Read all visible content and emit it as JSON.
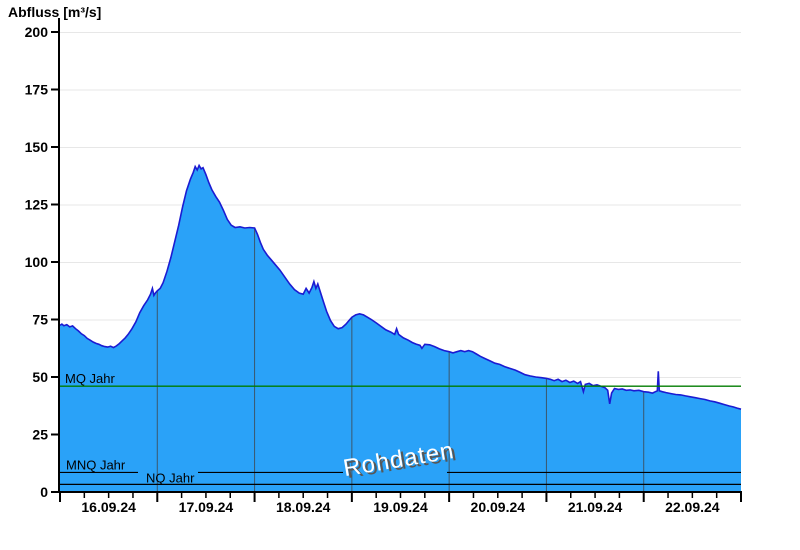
{
  "title": "Abfluss [m³/s]",
  "watermark": "Rohdaten",
  "colors": {
    "area_fill": "#2AA2F8",
    "area_stroke": "#1B1BD2",
    "h_grid": "#E7E7E7",
    "v_grid": "#3E4A54",
    "mq_line": "#007C00",
    "ref_line": "#000000",
    "axis": "#000000",
    "text": "#000000",
    "watermark_fill": "#FFFFFF",
    "watermark_shadow": "#575757"
  },
  "y_axis": {
    "min": 0,
    "max": 200,
    "step": 25,
    "tick_labels": [
      "0",
      "25",
      "50",
      "75",
      "100",
      "125",
      "150",
      "175",
      "200"
    ]
  },
  "x_axis": {
    "labels": [
      "16.09.24",
      "17.09.24",
      "18.09.24",
      "19.09.24",
      "20.09.24",
      "21.09.24",
      "22.09.24"
    ],
    "days": 7,
    "minor_ticks_per_day": 4,
    "range_note": "16.09.24 00:00 bis 23.09.24 00:00"
  },
  "chart_data": {
    "type": "area",
    "title": "Abfluss [m³/s]",
    "ylabel": "Abfluss [m³/s]",
    "xlabel": "",
    "ylim": [
      0,
      200
    ],
    "grid": true,
    "legend": false,
    "x_axis_labels": [
      "16.09.24",
      "17.09.24",
      "18.09.24",
      "19.09.24",
      "20.09.24",
      "21.09.24",
      "22.09.24"
    ],
    "x_unit": "Tage seit 16.09.24 00:00",
    "watermark": "Rohdaten",
    "reference_lines": [
      {
        "label": "MQ Jahr",
        "value": 46,
        "color": "#007C00"
      },
      {
        "label": "MNQ Jahr",
        "value": 8.5,
        "color": "#000000"
      },
      {
        "label": "NQ Jahr",
        "value": 3.3,
        "color": "#000000"
      }
    ],
    "series": [
      {
        "name": "Rohdaten",
        "unit": "m³/s",
        "points": [
          [
            0.0,
            72.5
          ],
          [
            0.02,
            73
          ],
          [
            0.04,
            72.3
          ],
          [
            0.07,
            72.8
          ],
          [
            0.1,
            71.8
          ],
          [
            0.13,
            72.2
          ],
          [
            0.16,
            71
          ],
          [
            0.19,
            70
          ],
          [
            0.22,
            68.8
          ],
          [
            0.25,
            68
          ],
          [
            0.28,
            66.8
          ],
          [
            0.31,
            66
          ],
          [
            0.34,
            65.2
          ],
          [
            0.37,
            64.6
          ],
          [
            0.4,
            64.2
          ],
          [
            0.43,
            63.6
          ],
          [
            0.46,
            63.2
          ],
          [
            0.49,
            63
          ],
          [
            0.52,
            63.4
          ],
          [
            0.55,
            62.8
          ],
          [
            0.58,
            63.5
          ],
          [
            0.61,
            64.5
          ],
          [
            0.64,
            65.8
          ],
          [
            0.67,
            67
          ],
          [
            0.7,
            68.5
          ],
          [
            0.74,
            71
          ],
          [
            0.78,
            74
          ],
          [
            0.82,
            78
          ],
          [
            0.86,
            81
          ],
          [
            0.9,
            83.5
          ],
          [
            0.93,
            86
          ],
          [
            0.95,
            88.5
          ],
          [
            0.965,
            85.5
          ],
          [
            0.98,
            86.5
          ],
          [
            1.0,
            87.5
          ],
          [
            1.03,
            88.5
          ],
          [
            1.06,
            91
          ],
          [
            1.1,
            96
          ],
          [
            1.14,
            102
          ],
          [
            1.18,
            109
          ],
          [
            1.22,
            116
          ],
          [
            1.26,
            124
          ],
          [
            1.3,
            131
          ],
          [
            1.34,
            136
          ],
          [
            1.37,
            139
          ],
          [
            1.39,
            141.5
          ],
          [
            1.41,
            140
          ],
          [
            1.43,
            142
          ],
          [
            1.45,
            140.5
          ],
          [
            1.47,
            141
          ],
          [
            1.5,
            138
          ],
          [
            1.53,
            134.5
          ],
          [
            1.56,
            131.5
          ],
          [
            1.6,
            128.5
          ],
          [
            1.64,
            126
          ],
          [
            1.68,
            122.5
          ],
          [
            1.72,
            118.5
          ],
          [
            1.76,
            116
          ],
          [
            1.8,
            115
          ],
          [
            1.85,
            115.3
          ],
          [
            1.9,
            114.8
          ],
          [
            1.95,
            115
          ],
          [
            2.0,
            114.8
          ],
          [
            2.03,
            112
          ],
          [
            2.06,
            108.5
          ],
          [
            2.09,
            105.5
          ],
          [
            2.13,
            103
          ],
          [
            2.17,
            101
          ],
          [
            2.21,
            99
          ],
          [
            2.26,
            96.5
          ],
          [
            2.31,
            93.5
          ],
          [
            2.36,
            90.5
          ],
          [
            2.41,
            88
          ],
          [
            2.46,
            86.5
          ],
          [
            2.5,
            86
          ],
          [
            2.53,
            88.5
          ],
          [
            2.56,
            86.5
          ],
          [
            2.59,
            89
          ],
          [
            2.61,
            91.5
          ],
          [
            2.63,
            88.5
          ],
          [
            2.65,
            90.5
          ],
          [
            2.68,
            86.5
          ],
          [
            2.71,
            82.5
          ],
          [
            2.74,
            78.5
          ],
          [
            2.78,
            74.5
          ],
          [
            2.82,
            72
          ],
          [
            2.86,
            71
          ],
          [
            2.9,
            71.5
          ],
          [
            2.94,
            73
          ],
          [
            2.97,
            74.5
          ],
          [
            3.0,
            76
          ],
          [
            3.04,
            77
          ],
          [
            3.08,
            77.5
          ],
          [
            3.12,
            77
          ],
          [
            3.16,
            76
          ],
          [
            3.2,
            75
          ],
          [
            3.25,
            73.5
          ],
          [
            3.3,
            72
          ],
          [
            3.35,
            70.5
          ],
          [
            3.4,
            69.5
          ],
          [
            3.44,
            68.5
          ],
          [
            3.46,
            71
          ],
          [
            3.48,
            68.5
          ],
          [
            3.53,
            67
          ],
          [
            3.58,
            66
          ],
          [
            3.62,
            65
          ],
          [
            3.66,
            64.3
          ],
          [
            3.7,
            63.8
          ],
          [
            3.72,
            62.5
          ],
          [
            3.75,
            64.2
          ],
          [
            3.8,
            64
          ],
          [
            3.85,
            63.2
          ],
          [
            3.9,
            62.2
          ],
          [
            3.95,
            61.5
          ],
          [
            4.0,
            61
          ],
          [
            4.04,
            60.5
          ],
          [
            4.08,
            61
          ],
          [
            4.12,
            61.5
          ],
          [
            4.16,
            61
          ],
          [
            4.2,
            61.5
          ],
          [
            4.24,
            61
          ],
          [
            4.28,
            60
          ],
          [
            4.32,
            59
          ],
          [
            4.37,
            58
          ],
          [
            4.42,
            57
          ],
          [
            4.47,
            56
          ],
          [
            4.52,
            55.5
          ],
          [
            4.57,
            54.5
          ],
          [
            4.62,
            53.8
          ],
          [
            4.68,
            53
          ],
          [
            4.73,
            52
          ],
          [
            4.78,
            51
          ],
          [
            4.83,
            50.5
          ],
          [
            4.89,
            50
          ],
          [
            4.95,
            49.7
          ],
          [
            5.0,
            49.4
          ],
          [
            5.04,
            49
          ],
          [
            5.08,
            48.4
          ],
          [
            5.12,
            49
          ],
          [
            5.16,
            48
          ],
          [
            5.2,
            48.6
          ],
          [
            5.24,
            47.6
          ],
          [
            5.28,
            48.2
          ],
          [
            5.32,
            47.2
          ],
          [
            5.35,
            48
          ],
          [
            5.38,
            43.6
          ],
          [
            5.4,
            46.8
          ],
          [
            5.44,
            47.2
          ],
          [
            5.48,
            46.2
          ],
          [
            5.52,
            46.6
          ],
          [
            5.56,
            46
          ],
          [
            5.6,
            45.4
          ],
          [
            5.63,
            44.2
          ],
          [
            5.65,
            38.3
          ],
          [
            5.67,
            43
          ],
          [
            5.7,
            45
          ],
          [
            5.74,
            44.6
          ],
          [
            5.78,
            44.8
          ],
          [
            5.82,
            44.2
          ],
          [
            5.86,
            44.4
          ],
          [
            5.9,
            44
          ],
          [
            5.95,
            44.2
          ],
          [
            6.0,
            43.6
          ],
          [
            6.05,
            43.4
          ],
          [
            6.09,
            43
          ],
          [
            6.12,
            43.6
          ],
          [
            6.14,
            44
          ],
          [
            6.15,
            52.5
          ],
          [
            6.16,
            44
          ],
          [
            6.19,
            43.6
          ],
          [
            6.23,
            43.2
          ],
          [
            6.28,
            42.8
          ],
          [
            6.33,
            42.4
          ],
          [
            6.38,
            42.2
          ],
          [
            6.43,
            41.8
          ],
          [
            6.48,
            41.4
          ],
          [
            6.53,
            41
          ],
          [
            6.58,
            40.6
          ],
          [
            6.63,
            40.2
          ],
          [
            6.68,
            39.6
          ],
          [
            6.73,
            39.2
          ],
          [
            6.78,
            38.6
          ],
          [
            6.83,
            38
          ],
          [
            6.88,
            37.4
          ],
          [
            6.92,
            37
          ],
          [
            6.96,
            36.5
          ],
          [
            7.0,
            36
          ]
        ]
      }
    ]
  }
}
